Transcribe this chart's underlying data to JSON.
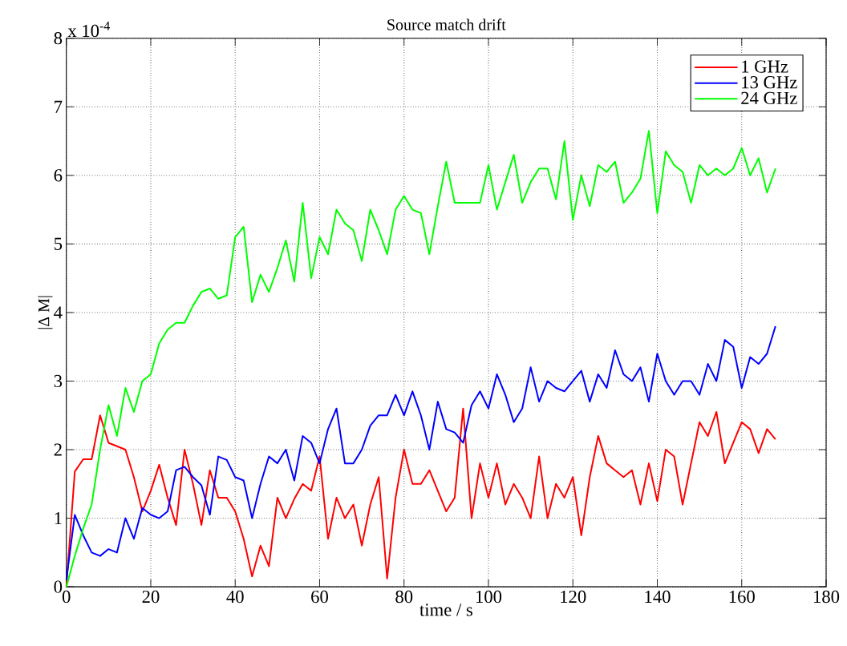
{
  "chart_data": {
    "type": "line",
    "title": "Source match drift",
    "xlabel": "time / s",
    "ylabel": "|Δ M|",
    "annotations": [
      "x 10$^{-4}$"
    ],
    "x": [
      0,
      2,
      4,
      6,
      8,
      10,
      12,
      14,
      16,
      18,
      20,
      22,
      24,
      26,
      28,
      30,
      32,
      34,
      36,
      38,
      40,
      42,
      44,
      46,
      48,
      50,
      52,
      54,
      56,
      58,
      60,
      62,
      64,
      66,
      68,
      70,
      72,
      74,
      76,
      78,
      80,
      82,
      84,
      86,
      88,
      90,
      92,
      94,
      96,
      98,
      100,
      102,
      104,
      106,
      108,
      110,
      112,
      114,
      116,
      118,
      120,
      122,
      124,
      126,
      128,
      130,
      132,
      134,
      136,
      138,
      140,
      142,
      144,
      146,
      148,
      150,
      152,
      154,
      156,
      158,
      160,
      162,
      164,
      166,
      168
    ],
    "series": [
      {
        "name": "1 GHz",
        "color": "#ff0000",
        "values": [
          0,
          1.68,
          1.86,
          1.86,
          2.5,
          2.1,
          2.05,
          2.0,
          1.6,
          1.1,
          1.4,
          1.78,
          1.3,
          0.9,
          2.0,
          1.5,
          0.9,
          1.7,
          1.3,
          1.3,
          1.1,
          0.7,
          0.15,
          0.6,
          0.3,
          1.3,
          1.0,
          1.28,
          1.5,
          1.4,
          1.9,
          0.7,
          1.3,
          1.0,
          1.2,
          0.6,
          1.2,
          1.6,
          0.12,
          1.3,
          2.0,
          1.5,
          1.5,
          1.7,
          1.4,
          1.1,
          1.3,
          2.6,
          1.0,
          1.8,
          1.3,
          1.8,
          1.2,
          1.5,
          1.3,
          1.0,
          1.9,
          1.0,
          1.5,
          1.3,
          1.6,
          0.75,
          1.6,
          2.2,
          1.8,
          1.7,
          1.6,
          1.7,
          1.2,
          1.8,
          1.25,
          2.0,
          1.9,
          1.2,
          1.8,
          2.4,
          2.2,
          2.55,
          1.8,
          2.1,
          2.4,
          2.3,
          1.95,
          2.3,
          2.15
        ]
      },
      {
        "name": "13 GHz",
        "color": "#0000ff",
        "values": [
          0.1,
          1.05,
          0.75,
          0.5,
          0.45,
          0.55,
          0.5,
          1.0,
          0.7,
          1.15,
          1.05,
          1.0,
          1.1,
          1.7,
          1.75,
          1.6,
          1.48,
          1.05,
          1.9,
          1.85,
          1.6,
          1.55,
          1.0,
          1.5,
          1.9,
          1.8,
          2.0,
          1.55,
          2.2,
          2.1,
          1.8,
          2.3,
          2.6,
          1.8,
          1.8,
          2.0,
          2.35,
          2.5,
          2.5,
          2.8,
          2.5,
          2.85,
          2.5,
          2.0,
          2.7,
          2.3,
          2.25,
          2.1,
          2.65,
          2.85,
          2.6,
          3.1,
          2.8,
          2.4,
          2.6,
          3.2,
          2.7,
          3.0,
          2.9,
          2.85,
          3.0,
          3.15,
          2.7,
          3.1,
          2.9,
          3.45,
          3.1,
          3.0,
          3.2,
          2.7,
          3.4,
          3.0,
          2.8,
          3.0,
          3.0,
          2.8,
          3.25,
          3.0,
          3.6,
          3.5,
          2.9,
          3.35,
          3.25,
          3.4,
          3.8
        ]
      },
      {
        "name": "24 GHz",
        "color": "#00ff00",
        "values": [
          0,
          0.45,
          0.85,
          1.2,
          2.0,
          2.65,
          2.2,
          2.9,
          2.55,
          3.0,
          3.1,
          3.55,
          3.75,
          3.85,
          3.85,
          4.1,
          4.3,
          4.35,
          4.2,
          4.25,
          5.1,
          5.25,
          4.15,
          4.55,
          4.3,
          4.65,
          5.05,
          4.45,
          5.6,
          4.5,
          5.1,
          4.85,
          5.5,
          5.3,
          5.2,
          4.75,
          5.5,
          5.2,
          4.85,
          5.5,
          5.7,
          5.5,
          5.45,
          4.85,
          5.55,
          6.2,
          5.6,
          5.6,
          5.6,
          5.6,
          6.15,
          5.5,
          5.9,
          6.3,
          5.6,
          5.9,
          6.1,
          6.1,
          5.65,
          6.5,
          5.35,
          6.0,
          5.55,
          6.15,
          6.05,
          6.2,
          5.6,
          5.75,
          5.95,
          6.65,
          5.45,
          6.35,
          6.15,
          6.05,
          5.6,
          6.15,
          6.0,
          6.1,
          6.0,
          6.1,
          6.4,
          6.0,
          6.25,
          5.75,
          6.1
        ]
      }
    ],
    "xlim": [
      0,
      180
    ],
    "xticks": [
      0,
      20,
      40,
      60,
      80,
      100,
      120,
      140,
      160,
      180
    ],
    "ylim": [
      0,
      8
    ],
    "yticks": [
      0,
      1,
      2,
      3,
      4,
      5,
      6,
      7,
      8
    ],
    "grid": true,
    "legend": "top right",
    "marker": "none",
    "line_style": "solid"
  }
}
